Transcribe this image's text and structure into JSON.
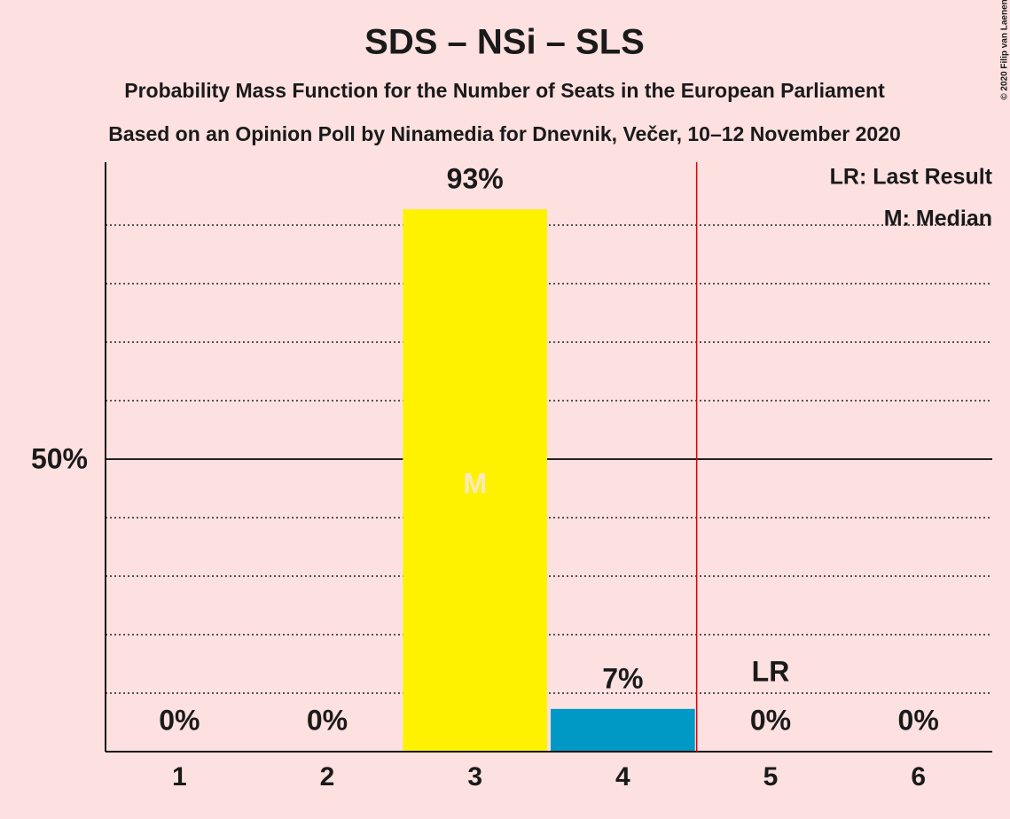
{
  "chart_data": {
    "type": "bar",
    "title": "SDS – NSi – SLS",
    "subtitle": "Probability Mass Function for the Number of Seats in the European Parliament",
    "subtitle2": "Based on an Opinion Poll by Ninamedia for Dnevnik, Večer, 10–12 November 2020",
    "copyright": "© 2020 Filip van Laenen",
    "categories": [
      "1",
      "2",
      "3",
      "4",
      "5",
      "6"
    ],
    "values": [
      0,
      0,
      92.7,
      7.3,
      0,
      0
    ],
    "value_labels": [
      "0%",
      "0%",
      "93%",
      "7%",
      "0%",
      "0%"
    ],
    "colors": [
      null,
      null,
      "#fff200",
      "#0099c6",
      null,
      null
    ],
    "ylim": [
      0,
      100
    ],
    "yticks": [
      {
        "value": 50,
        "label": "50%"
      }
    ],
    "minor_yticks": [
      10,
      20,
      30,
      40,
      60,
      70,
      80,
      90
    ],
    "grid": true,
    "last_result": {
      "category": 4,
      "label": "LR",
      "color": "#e00000"
    },
    "median": {
      "category": 2,
      "label": "M"
    },
    "legend": [
      "LR: Last Result",
      "M: Median"
    ],
    "legend_position": "upper right"
  }
}
